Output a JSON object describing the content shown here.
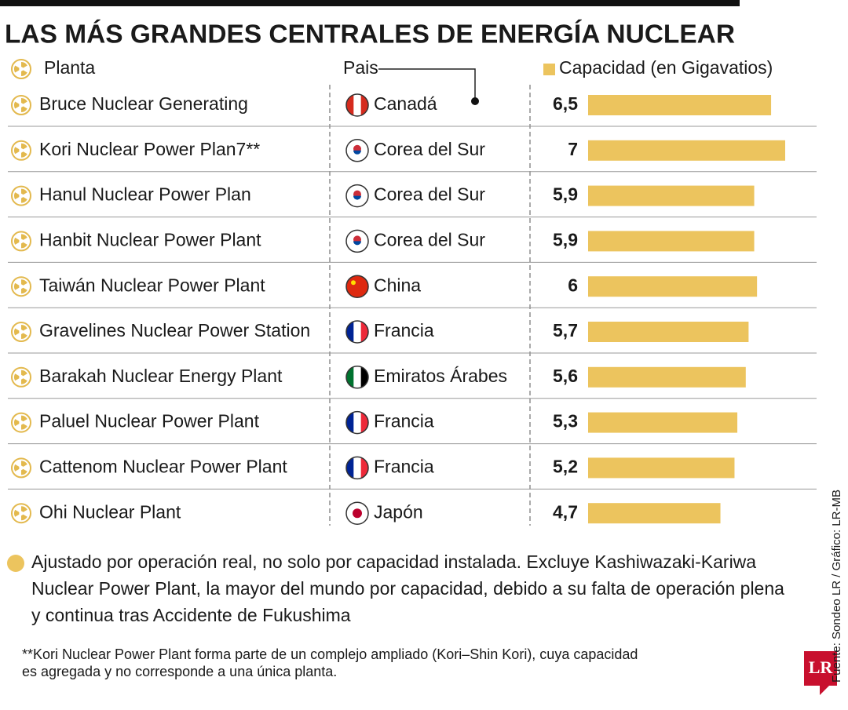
{
  "chart_data": {
    "type": "bar",
    "title": "LAS MÁS GRANDES CENTRALES DE ENERGÍA NUCLEAR",
    "column_headers": [
      "Planta",
      "Pais",
      "Capacidad (en Gigavatios)"
    ],
    "categories": [
      "Bruce Nuclear Generating",
      "Kori Nuclear Power Plan7**",
      "Hanul Nuclear Power Plan",
      "Hanbit Nuclear Power Plant",
      "Taiwán Nuclear Power Plant",
      "Gravelines Nuclear Power Station",
      "Barakah Nuclear Energy Plant",
      "Paluel Nuclear Power Plant",
      "Cattenom Nuclear Power Plant",
      "Ohi Nuclear Plant"
    ],
    "countries": [
      "Canadá",
      "Corea del Sur",
      "Corea del Sur",
      "Corea del Sur",
      "China",
      "Francia",
      "Emiratos Árabes",
      "Francia",
      "Francia",
      "Japón"
    ],
    "values": [
      6.5,
      7,
      5.9,
      5.9,
      6,
      5.7,
      5.6,
      5.3,
      5.2,
      4.7
    ],
    "value_labels": [
      "6,5",
      "7",
      "5,9",
      "5,9",
      "6",
      "5,7",
      "5,6",
      "5,3",
      "5,2",
      "4,7"
    ],
    "color": "#ecc45e",
    "note_lines": [
      "Ajustado por operación real, no solo por capacidad instalada. Excluye Kashiwazaki-Kariwa",
      "Nuclear Power Plant, la mayor del mundo por capacidad, debido a su falta de operación plena",
      "y continua tras Accidente de Fukushima"
    ],
    "footnote_lines": [
      "**Kori Nuclear Power Plant forma parte de un complejo ampliado (Kori–Shin Kori), cuya capacidad",
      "es agregada y no corresponde a una única planta."
    ],
    "source": "Fuente: Sondeo LR / Gráfico: LR-MB",
    "logo": "LR"
  }
}
